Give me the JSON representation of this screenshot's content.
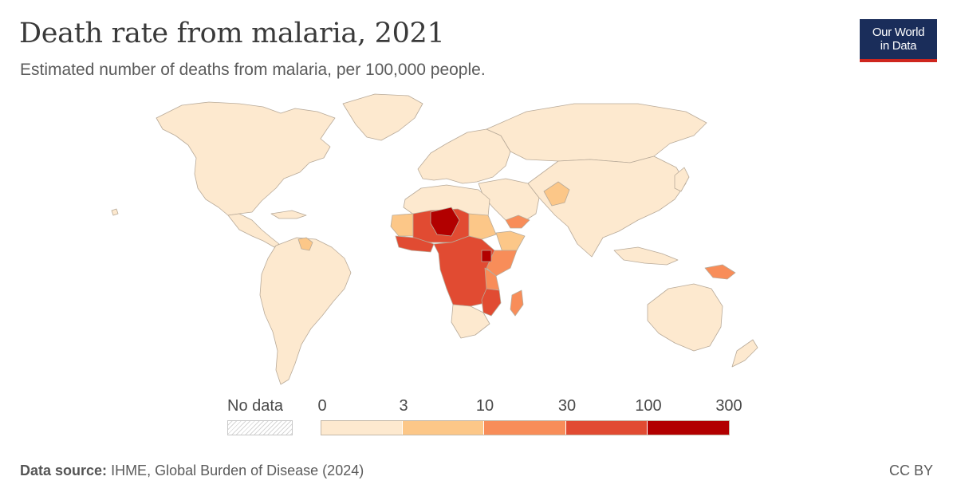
{
  "header": {
    "title": "Death rate from malaria, 2021",
    "subtitle": "Estimated number of deaths from malaria, per 100,000 people."
  },
  "logo": {
    "line1": "Our World",
    "line2": "in Data"
  },
  "legend": {
    "no_data_label": "No data",
    "ticks": [
      "0",
      "3",
      "10",
      "30",
      "100",
      "300"
    ],
    "bins": [
      {
        "from": 0,
        "to": 3,
        "color": "#fde9cf"
      },
      {
        "from": 3,
        "to": 10,
        "color": "#fcc788"
      },
      {
        "from": 10,
        "to": 30,
        "color": "#f88d59"
      },
      {
        "from": 30,
        "to": 100,
        "color": "#e14b32"
      },
      {
        "from": 100,
        "to": 300,
        "color": "#b20000"
      }
    ]
  },
  "colors": {
    "land_low": "#fde9cf",
    "outline": "#b8aa99",
    "logo_bg": "#1a2d5a",
    "logo_accent": "#ce261e"
  },
  "footer": {
    "source_label": "Data source:",
    "source_text": "IHME, Global Burden of Disease (2024)",
    "license": "CC BY"
  }
}
